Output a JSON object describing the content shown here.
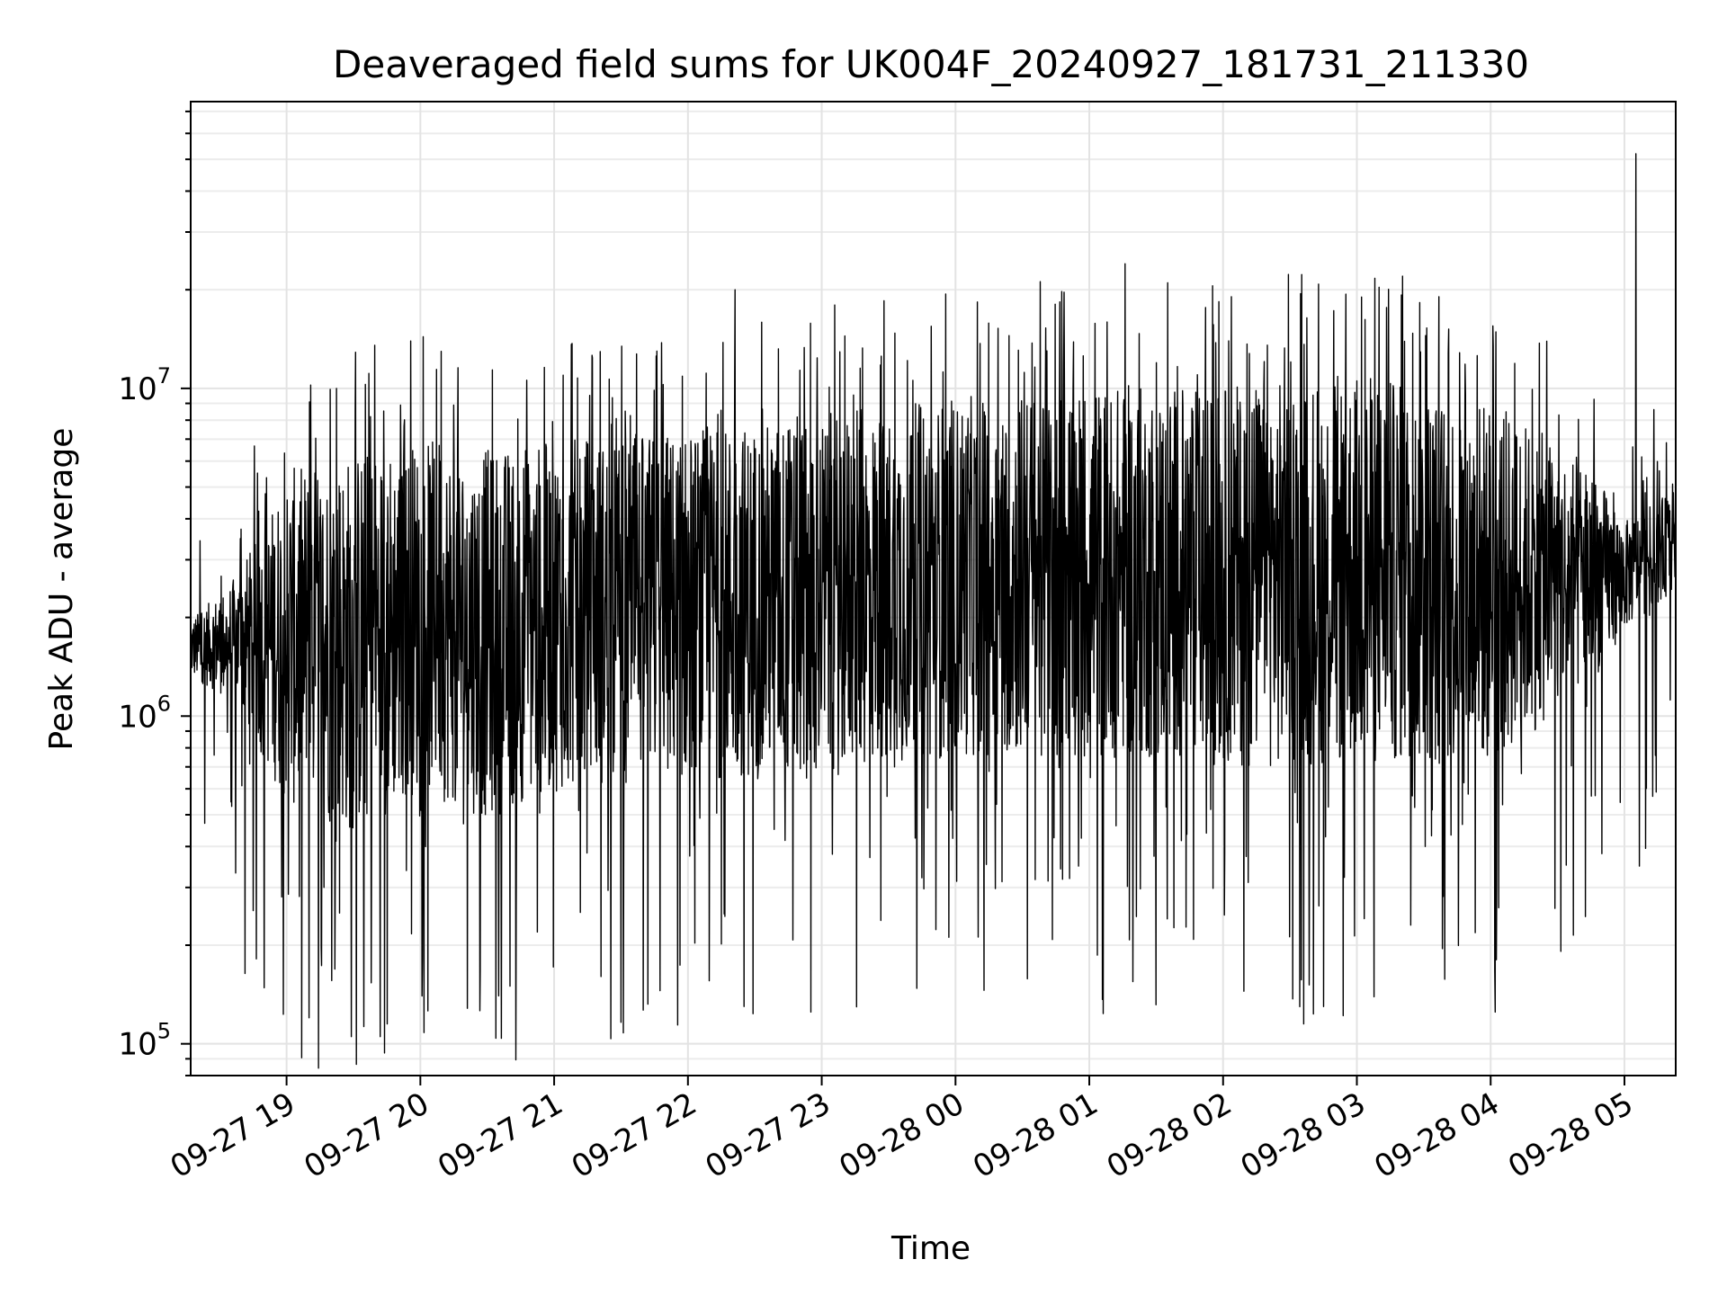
{
  "chart_data": {
    "type": "line",
    "title": "Deaveraged field sums for UK004F_20240927_181731_211330",
    "xlabel": "Time",
    "ylabel": "Peak ADU - average",
    "yscale": "log",
    "ylim": [
      80000,
      75000000
    ],
    "xlim": [
      "2024-09-27 18:17",
      "2024-09-28 05:23"
    ],
    "grid": true,
    "x_ticks": [
      {
        "value": "2024-09-27 19:00",
        "label": "09-27 19"
      },
      {
        "value": "2024-09-27 20:00",
        "label": "09-27 20"
      },
      {
        "value": "2024-09-27 21:00",
        "label": "09-27 21"
      },
      {
        "value": "2024-09-27 22:00",
        "label": "09-27 22"
      },
      {
        "value": "2024-09-27 23:00",
        "label": "09-27 23"
      },
      {
        "value": "2024-09-28 00:00",
        "label": "09-28 00"
      },
      {
        "value": "2024-09-28 01:00",
        "label": "09-28 01"
      },
      {
        "value": "2024-09-28 02:00",
        "label": "09-28 02"
      },
      {
        "value": "2024-09-28 03:00",
        "label": "09-28 03"
      },
      {
        "value": "2024-09-28 04:00",
        "label": "09-28 04"
      },
      {
        "value": "2024-09-28 05:00",
        "label": "09-28 05"
      }
    ],
    "y_ticks": [
      {
        "value": 100000,
        "base": "10",
        "exp": "5"
      },
      {
        "value": 1000000,
        "base": "10",
        "exp": "6"
      },
      {
        "value": 10000000,
        "base": "10",
        "exp": "7"
      }
    ],
    "envelope": [
      {
        "x": "2024-09-27 18:17",
        "low": 1300000,
        "high": 2000000
      },
      {
        "x": "2024-09-27 18:35",
        "low": 1100000,
        "high": 2600000
      },
      {
        "x": "2024-09-27 18:50",
        "low": 700000,
        "high": 4000000
      },
      {
        "x": "2024-09-27 19:00",
        "low": 500000,
        "high": 6000000
      },
      {
        "x": "2024-09-27 19:30",
        "low": 400000,
        "high": 7000000
      },
      {
        "x": "2024-09-27 20:00",
        "low": 550000,
        "high": 7500000
      },
      {
        "x": "2024-09-27 20:30",
        "low": 450000,
        "high": 7000000
      },
      {
        "x": "2024-09-27 21:00",
        "low": 550000,
        "high": 7500000
      },
      {
        "x": "2024-09-27 22:00",
        "low": 600000,
        "high": 8000000
      },
      {
        "x": "2024-09-27 23:00",
        "low": 600000,
        "high": 9000000
      },
      {
        "x": "2024-09-28 00:00",
        "low": 700000,
        "high": 10000000
      },
      {
        "x": "2024-09-28 01:00",
        "low": 700000,
        "high": 11000000
      },
      {
        "x": "2024-09-28 02:00",
        "low": 650000,
        "high": 11000000
      },
      {
        "x": "2024-09-28 03:00",
        "low": 650000,
        "high": 12000000
      },
      {
        "x": "2024-09-28 04:00",
        "low": 650000,
        "high": 10000000
      },
      {
        "x": "2024-09-28 04:45",
        "low": 1200000,
        "high": 6000000
      },
      {
        "x": "2024-09-28 05:00",
        "low": 1800000,
        "high": 4000000
      },
      {
        "x": "2024-09-28 05:23",
        "low": 2400000,
        "high": 5000000
      }
    ],
    "spikes": [
      {
        "x": "2024-09-27 19:10",
        "value": 120000
      },
      {
        "x": "2024-09-27 19:45",
        "value": 115000
      },
      {
        "x": "2024-09-27 20:35",
        "value": 140000
      },
      {
        "x": "2024-09-27 21:31",
        "value": 108000
      },
      {
        "x": "2024-09-27 22:21",
        "value": 20000000
      },
      {
        "x": "2024-09-27 22:25",
        "value": 130000
      },
      {
        "x": "2024-09-27 22:55",
        "value": 125000
      },
      {
        "x": "2024-09-28 01:16",
        "value": 24000000
      },
      {
        "x": "2024-09-28 01:35",
        "value": 21000000
      },
      {
        "x": "2024-09-28 02:36",
        "value": 115000
      },
      {
        "x": "2024-09-28 03:02",
        "value": 19000000
      },
      {
        "x": "2024-09-28 04:02",
        "value": 125000
      },
      {
        "x": "2024-09-28 05:05",
        "value": 52000000
      }
    ]
  }
}
